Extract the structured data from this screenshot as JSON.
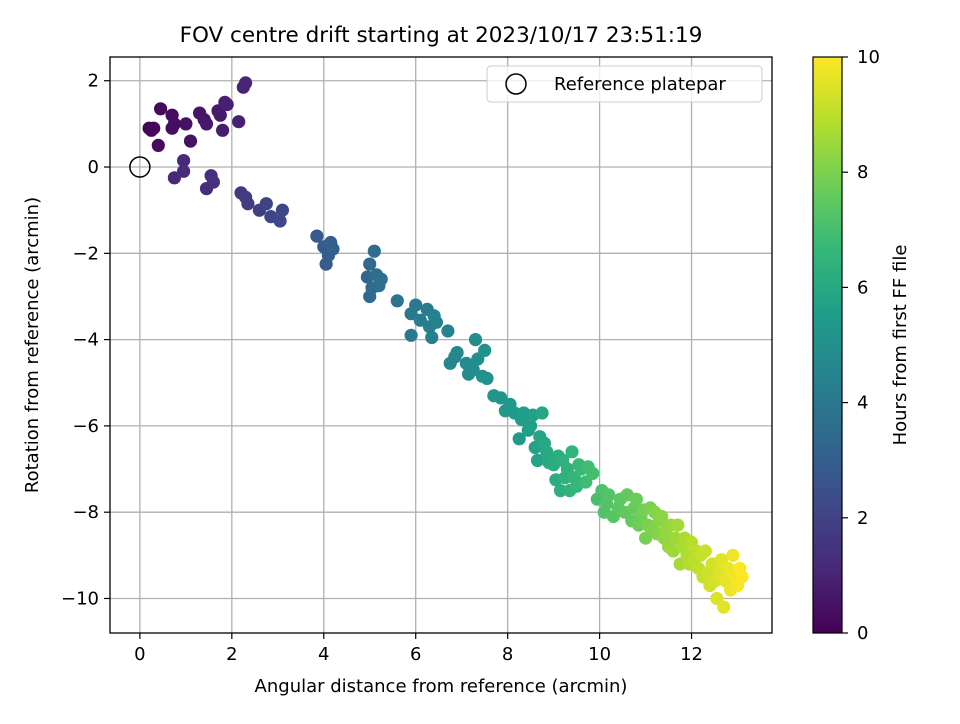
{
  "chart_data": {
    "type": "scatter",
    "title": "FOV centre drift starting at 2023/10/17 23:51:19",
    "xlabel": "Angular distance from reference (arcmin)",
    "ylabel": "Rotation from reference (arcmin)",
    "colorbar_label": "Hours from first FF file",
    "xlim": [
      -0.65,
      13.75
    ],
    "ylim": [
      -10.8,
      2.55
    ],
    "x_ticks": [
      0,
      2,
      4,
      6,
      8,
      10,
      12
    ],
    "y_ticks": [
      2,
      0,
      -2,
      -4,
      -6,
      -8,
      -10
    ],
    "x_tick_labels": [
      "0",
      "2",
      "4",
      "6",
      "8",
      "10",
      "12"
    ],
    "y_tick_labels": [
      "2",
      "0",
      "−2",
      "−4",
      "−6",
      "−8",
      "−10"
    ],
    "colorbar_ticks": [
      0,
      2,
      4,
      6,
      8,
      10
    ],
    "colorbar_tick_labels": [
      "0",
      "2",
      "4",
      "6",
      "8",
      "10"
    ],
    "colorbar_range": [
      0,
      10
    ],
    "colormap": "viridis",
    "grid": true,
    "legend": {
      "placement": "upper right",
      "label": "Reference platepar"
    },
    "reference_point": {
      "x": 0,
      "y": 0
    },
    "points": [
      [
        0.2,
        0.9,
        0.1
      ],
      [
        0.25,
        0.85,
        0.15
      ],
      [
        0.3,
        0.9,
        0.2
      ],
      [
        0.4,
        0.5,
        0.3
      ],
      [
        0.45,
        1.35,
        0.25
      ],
      [
        0.7,
        1.2,
        0.3
      ],
      [
        0.7,
        0.9,
        0.35
      ],
      [
        0.75,
        1.0,
        0.4
      ],
      [
        1.0,
        1.0,
        0.45
      ],
      [
        1.1,
        0.6,
        0.5
      ],
      [
        1.3,
        1.25,
        0.55
      ],
      [
        1.4,
        1.1,
        0.6
      ],
      [
        1.45,
        1.0,
        0.65
      ],
      [
        1.7,
        1.3,
        0.7
      ],
      [
        1.75,
        1.2,
        0.75
      ],
      [
        1.8,
        0.85,
        0.8
      ],
      [
        1.85,
        1.5,
        0.85
      ],
      [
        1.9,
        1.45,
        0.9
      ],
      [
        2.15,
        1.05,
        0.95
      ],
      [
        2.25,
        1.85,
        1.0
      ],
      [
        2.3,
        1.95,
        1.05
      ],
      [
        0.75,
        -0.25,
        1.15
      ],
      [
        0.95,
        0.15,
        1.2
      ],
      [
        0.95,
        -0.1,
        1.25
      ],
      [
        1.45,
        -0.5,
        1.3
      ],
      [
        1.55,
        -0.2,
        1.35
      ],
      [
        1.6,
        -0.35,
        1.4
      ],
      [
        2.2,
        -0.6,
        1.7
      ],
      [
        2.3,
        -0.7,
        1.75
      ],
      [
        2.35,
        -0.85,
        1.8
      ],
      [
        2.6,
        -1.0,
        1.9
      ],
      [
        2.75,
        -0.85,
        2.0
      ],
      [
        2.85,
        -1.15,
        2.1
      ],
      [
        3.05,
        -1.25,
        2.15
      ],
      [
        3.1,
        -1.0,
        2.2
      ],
      [
        3.85,
        -1.6,
        2.8
      ],
      [
        4.0,
        -1.85,
        2.85
      ],
      [
        4.05,
        -2.25,
        2.9
      ],
      [
        4.1,
        -2.05,
        2.95
      ],
      [
        4.15,
        -1.75,
        3.0
      ],
      [
        4.2,
        -1.9,
        3.05
      ],
      [
        4.95,
        -2.55,
        3.3
      ],
      [
        5.0,
        -2.25,
        3.35
      ],
      [
        5.0,
        -3.0,
        3.4
      ],
      [
        5.05,
        -2.8,
        3.45
      ],
      [
        5.1,
        -1.95,
        3.5
      ],
      [
        5.15,
        -2.5,
        3.55
      ],
      [
        5.2,
        -2.75,
        3.6
      ],
      [
        5.25,
        -2.6,
        3.65
      ],
      [
        5.6,
        -3.1,
        3.9
      ],
      [
        5.9,
        -3.4,
        4.0
      ],
      [
        5.9,
        -3.9,
        4.05
      ],
      [
        6.0,
        -3.2,
        4.1
      ],
      [
        6.1,
        -3.55,
        4.15
      ],
      [
        6.25,
        -3.3,
        4.2
      ],
      [
        6.3,
        -3.7,
        4.25
      ],
      [
        6.35,
        -3.95,
        4.3
      ],
      [
        6.4,
        -3.45,
        4.35
      ],
      [
        6.45,
        -3.6,
        4.4
      ],
      [
        6.7,
        -3.8,
        4.5
      ],
      [
        6.75,
        -4.55,
        4.6
      ],
      [
        6.85,
        -4.4,
        4.65
      ],
      [
        6.9,
        -4.3,
        4.7
      ],
      [
        7.1,
        -4.55,
        4.75
      ],
      [
        7.15,
        -4.8,
        4.8
      ],
      [
        7.25,
        -4.7,
        4.85
      ],
      [
        7.3,
        -4.0,
        4.9
      ],
      [
        7.35,
        -4.45,
        4.95
      ],
      [
        7.45,
        -4.85,
        5.0
      ],
      [
        7.5,
        -4.25,
        5.05
      ],
      [
        7.55,
        -4.9,
        5.1
      ],
      [
        7.7,
        -5.3,
        5.2
      ],
      [
        7.85,
        -5.35,
        5.25
      ],
      [
        7.95,
        -5.65,
        5.3
      ],
      [
        8.05,
        -5.5,
        5.35
      ],
      [
        8.15,
        -5.7,
        5.4
      ],
      [
        8.25,
        -6.3,
        5.45
      ],
      [
        8.3,
        -5.85,
        5.5
      ],
      [
        8.35,
        -5.7,
        5.55
      ],
      [
        8.45,
        -6.1,
        5.6
      ],
      [
        8.5,
        -6.0,
        5.65
      ],
      [
        8.55,
        -5.75,
        5.7
      ],
      [
        8.6,
        -6.5,
        5.75
      ],
      [
        8.65,
        -6.8,
        5.8
      ],
      [
        8.7,
        -6.25,
        5.85
      ],
      [
        8.75,
        -5.7,
        5.9
      ],
      [
        8.8,
        -6.4,
        5.95
      ],
      [
        8.85,
        -6.6,
        6.0
      ],
      [
        8.9,
        -6.85,
        6.05
      ],
      [
        9.0,
        -6.9,
        6.15
      ],
      [
        9.05,
        -7.25,
        6.2
      ],
      [
        9.1,
        -6.7,
        6.25
      ],
      [
        9.15,
        -7.5,
        6.3
      ],
      [
        9.2,
        -6.8,
        6.35
      ],
      [
        9.25,
        -7.2,
        6.4
      ],
      [
        9.3,
        -7.0,
        6.45
      ],
      [
        9.35,
        -7.5,
        6.5
      ],
      [
        9.4,
        -6.6,
        6.55
      ],
      [
        9.45,
        -7.2,
        6.6
      ],
      [
        9.5,
        -7.4,
        6.65
      ],
      [
        9.55,
        -6.9,
        6.7
      ],
      [
        9.6,
        -7.0,
        6.75
      ],
      [
        9.7,
        -7.3,
        6.85
      ],
      [
        9.75,
        -6.95,
        6.9
      ],
      [
        9.85,
        -7.1,
        6.95
      ],
      [
        9.95,
        -7.7,
        7.05
      ],
      [
        10.05,
        -7.5,
        7.15
      ],
      [
        10.1,
        -8.0,
        7.2
      ],
      [
        10.15,
        -7.8,
        7.25
      ],
      [
        10.2,
        -7.6,
        7.3
      ],
      [
        10.3,
        -8.1,
        7.35
      ],
      [
        10.4,
        -7.9,
        7.4
      ],
      [
        10.45,
        -7.7,
        7.45
      ],
      [
        10.55,
        -8.0,
        7.5
      ],
      [
        10.6,
        -7.6,
        7.55
      ],
      [
        10.7,
        -8.2,
        7.6
      ],
      [
        10.75,
        -7.9,
        7.65
      ],
      [
        10.8,
        -7.7,
        7.7
      ],
      [
        10.85,
        -8.3,
        7.75
      ],
      [
        10.9,
        -8.1,
        7.8
      ],
      [
        10.95,
        -7.95,
        7.85
      ],
      [
        11.0,
        -8.6,
        7.9
      ],
      [
        11.05,
        -8.3,
        7.95
      ],
      [
        11.1,
        -7.9,
        8.0
      ],
      [
        11.15,
        -8.4,
        8.05
      ],
      [
        11.2,
        -8.0,
        8.1
      ],
      [
        11.25,
        -8.5,
        8.15
      ],
      [
        11.3,
        -8.2,
        8.2
      ],
      [
        11.35,
        -8.1,
        8.25
      ],
      [
        11.4,
        -8.6,
        8.3
      ],
      [
        11.45,
        -8.4,
        8.35
      ],
      [
        11.5,
        -8.8,
        8.4
      ],
      [
        11.55,
        -8.3,
        8.45
      ],
      [
        11.6,
        -8.9,
        8.5
      ],
      [
        11.65,
        -8.6,
        8.55
      ],
      [
        11.7,
        -8.3,
        8.6
      ],
      [
        11.75,
        -9.2,
        8.65
      ],
      [
        11.8,
        -8.8,
        8.7
      ],
      [
        11.85,
        -8.6,
        8.75
      ],
      [
        11.9,
        -9.0,
        8.8
      ],
      [
        11.95,
        -9.2,
        8.85
      ],
      [
        12.0,
        -8.7,
        8.9
      ],
      [
        12.05,
        -9.1,
        8.95
      ],
      [
        12.1,
        -8.9,
        9.0
      ],
      [
        12.15,
        -9.3,
        9.05
      ],
      [
        12.2,
        -9.0,
        9.1
      ],
      [
        12.25,
        -9.5,
        9.15
      ],
      [
        12.3,
        -8.9,
        9.2
      ],
      [
        12.35,
        -9.4,
        9.25
      ],
      [
        12.4,
        -9.7,
        9.3
      ],
      [
        12.45,
        -9.2,
        9.35
      ],
      [
        12.5,
        -9.6,
        9.4
      ],
      [
        12.55,
        -10.0,
        9.45
      ],
      [
        12.6,
        -9.4,
        9.5
      ],
      [
        12.65,
        -9.1,
        9.55
      ],
      [
        12.7,
        -10.2,
        9.6
      ],
      [
        12.75,
        -9.6,
        9.65
      ],
      [
        12.8,
        -9.3,
        9.7
      ],
      [
        12.85,
        -9.8,
        9.75
      ],
      [
        12.9,
        -9.0,
        9.8
      ],
      [
        12.95,
        -9.5,
        9.85
      ],
      [
        13.0,
        -9.7,
        9.9
      ],
      [
        13.05,
        -9.3,
        9.95
      ],
      [
        13.1,
        -9.5,
        10.0
      ]
    ]
  }
}
